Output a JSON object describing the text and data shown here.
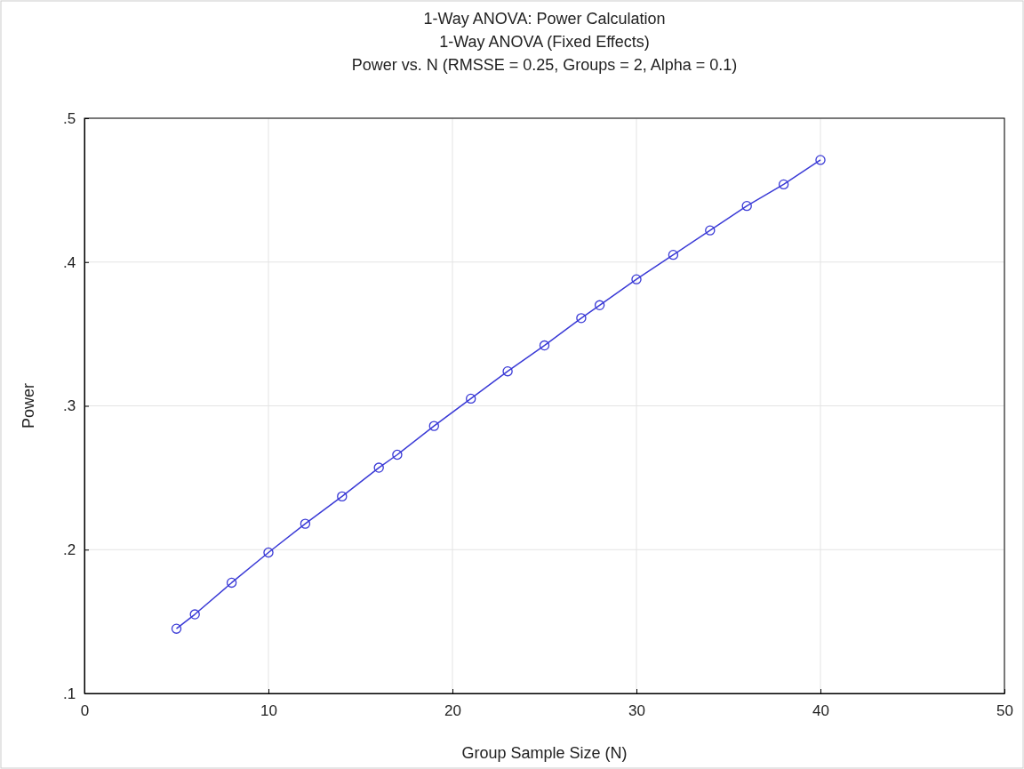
{
  "chart_data": {
    "type": "line",
    "title": "1-Way ANOVA: Power Calculation",
    "subtitle": "1-Way ANOVA (Fixed Effects)\nPower vs. N (RMSSE = 0.25, Groups = 2, Alpha = 0.1)",
    "xlabel": "Group Sample Size (N)",
    "ylabel": "Power",
    "x": [
      5,
      6,
      8,
      10,
      12,
      14,
      16,
      17,
      19,
      21,
      23,
      25,
      27,
      28,
      30,
      32,
      34,
      36,
      38,
      40
    ],
    "series": [
      {
        "color": "#3a3ad6",
        "values": [
          0.145,
          0.155,
          0.177,
          0.198,
          0.218,
          0.237,
          0.257,
          0.266,
          0.286,
          0.305,
          0.324,
          0.342,
          0.361,
          0.37,
          0.388,
          0.405,
          0.422,
          0.439,
          0.454,
          0.471
        ]
      }
    ],
    "xlim": [
      0,
      50
    ],
    "xticks": [
      0,
      10,
      20,
      30,
      40,
      50
    ],
    "ylim": [
      0.1,
      0.5
    ],
    "yticks": [
      {
        "value": 0.1,
        "label": ".1"
      },
      {
        "value": 0.2,
        "label": ".2"
      },
      {
        "value": 0.3,
        "label": ".3"
      },
      {
        "value": 0.4,
        "label": ".4"
      },
      {
        "value": 0.5,
        "label": ".5"
      }
    ],
    "grid": true,
    "marker": "circle",
    "line_style": "solid"
  }
}
